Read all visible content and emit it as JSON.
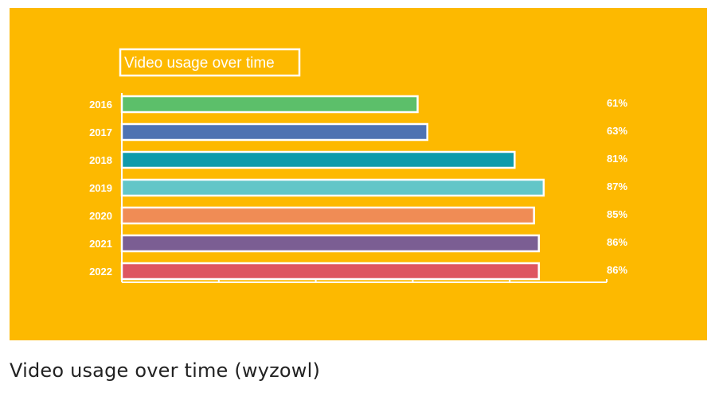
{
  "caption": "Video usage over time (wyzowl)",
  "chart_data": {
    "type": "bar",
    "orientation": "horizontal",
    "title": "Video usage over time",
    "categories": [
      "2016",
      "2017",
      "2018",
      "2019",
      "2020",
      "2021",
      "2022"
    ],
    "values": [
      61,
      63,
      81,
      87,
      85,
      86,
      86
    ],
    "value_labels": [
      "61%",
      "63%",
      "81%",
      "87%",
      "85%",
      "86%",
      "86%"
    ],
    "colors": [
      "#5cbf6a",
      "#4f73b2",
      "#0f9bab",
      "#62c6c8",
      "#f08c55",
      "#7b5e93",
      "#de5561"
    ],
    "xlim": [
      0,
      100
    ],
    "x_ticks": [
      0,
      20,
      40,
      60,
      80,
      100
    ],
    "background": "#fdb900",
    "outline_color": "#ffffff"
  }
}
